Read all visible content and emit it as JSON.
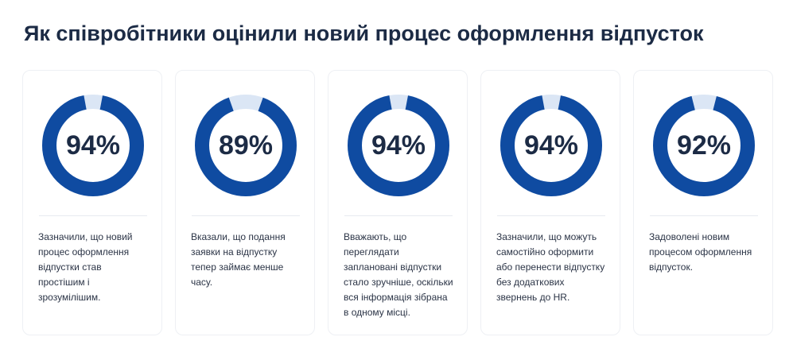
{
  "title": "Як співробітники оцінили новий процес оформлення відпусток",
  "colors": {
    "ring_fill": "#0f4ba1",
    "ring_track": "#dbe6f5",
    "text": "#1c2b45"
  },
  "chart_data": {
    "type": "pie",
    "title": "Як співробітники оцінили новий процес оформлення відпусток",
    "unit": "%",
    "cards": [
      {
        "value": 94,
        "label": "94%",
        "description": "Зазначили, що новий процес оформлення відпустки став простішим і зрозумілішим."
      },
      {
        "value": 89,
        "label": "89%",
        "description": "Вказали, що подання заявки на відпустку тепер займає менше часу."
      },
      {
        "value": 94,
        "label": "94%",
        "description": "Вважають, що переглядати заплановані відпустки стало зручніше, оскільки вся інформація зібрана в одному місці."
      },
      {
        "value": 94,
        "label": "94%",
        "description": "Зазначили, що можуть самостійно оформити або перенести відпустку без додаткових звернень до HR."
      },
      {
        "value": 92,
        "label": "92%",
        "description": "Задоволені новим процесом оформлення відпусток."
      }
    ]
  }
}
